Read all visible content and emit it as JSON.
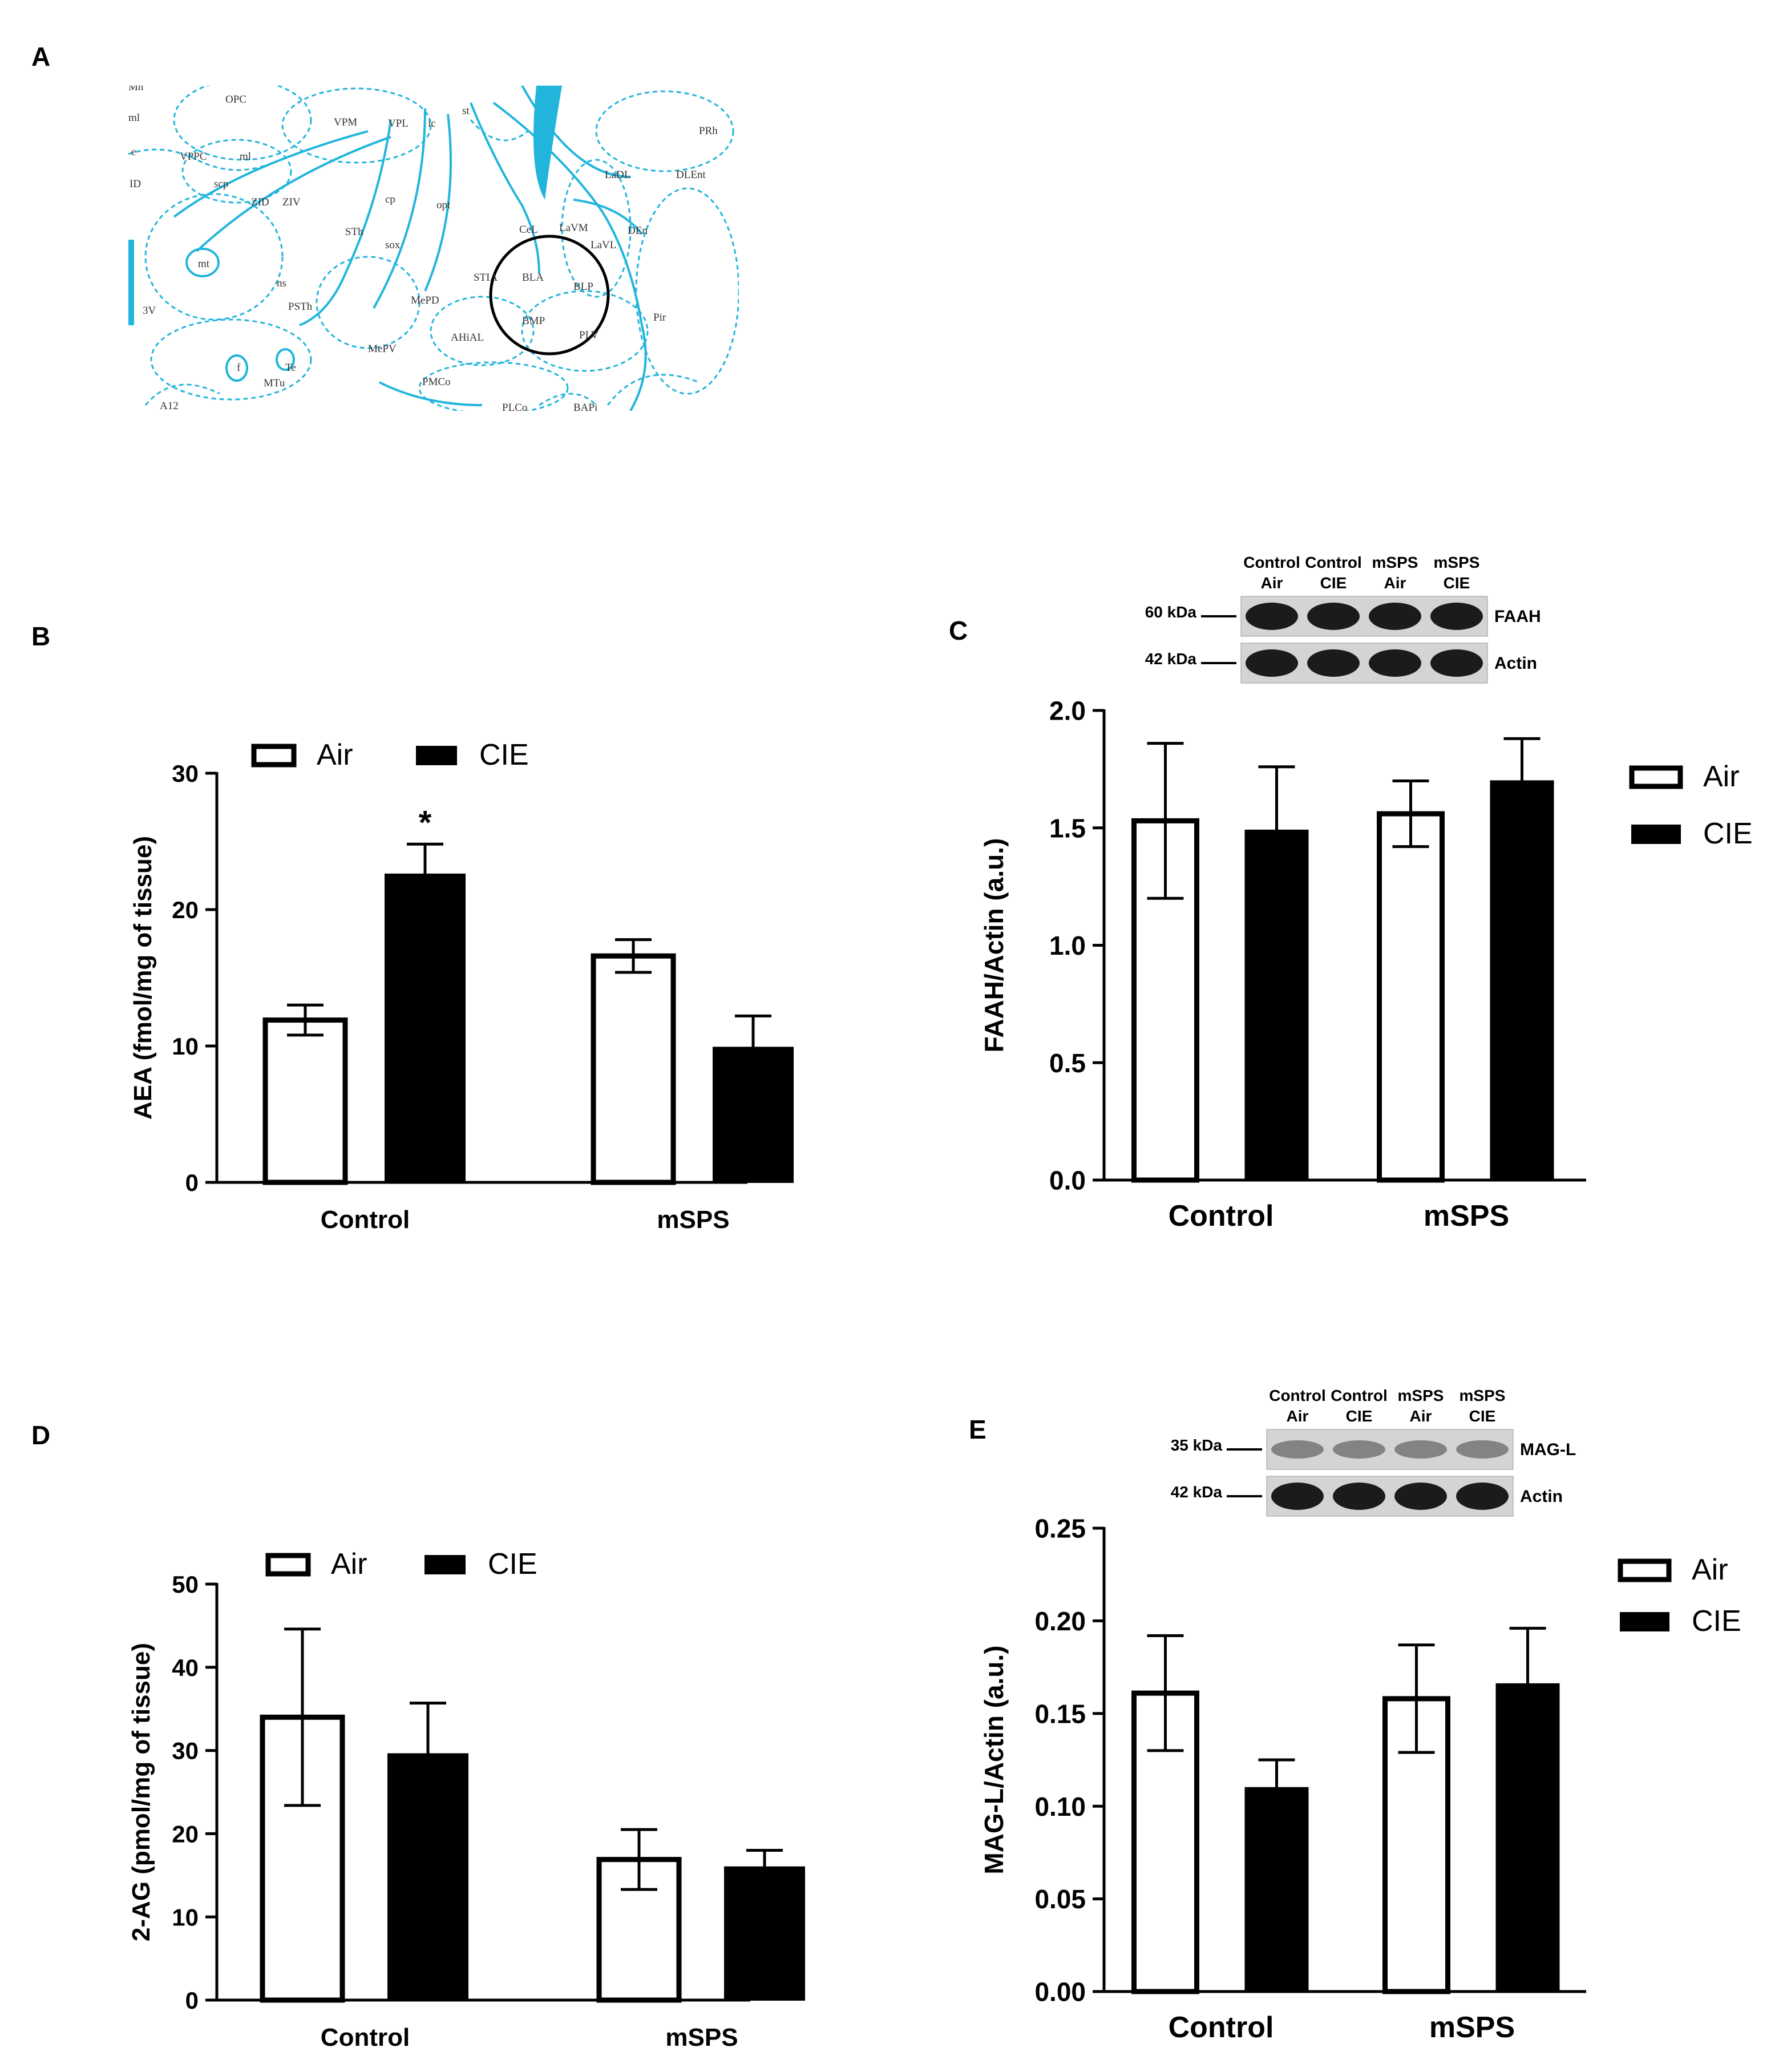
{
  "panels": {
    "A": {
      "letter": "A",
      "atlas_labels": [
        "Mn",
        "ml",
        "e",
        "ID",
        "OPC",
        "VPPC",
        "ml",
        "scp",
        "ZID",
        "ZIV",
        "VPM",
        "VPL",
        "ic",
        "st",
        "cp",
        "STh",
        "sox",
        "opt",
        "CeL",
        "LaVM",
        "LaVL",
        "LaDL",
        "DLEnt",
        "PRh",
        "DEn",
        "BLA",
        "BLP",
        "BMP",
        "PLV",
        "STIA",
        "MePD",
        "MePV",
        "AHiAL",
        "PMCo",
        "PLCo",
        "BAPi",
        "Pir",
        "mt",
        "ns",
        "PSTh",
        "3V",
        "f",
        "Te",
        "MTu",
        "A12"
      ]
    },
    "B": {
      "letter": "B"
    },
    "C": {
      "letter": "C",
      "blot": {
        "lanes": [
          [
            "Control",
            "Air"
          ],
          [
            "Control",
            "CIE"
          ],
          [
            "mSPS",
            "Air"
          ],
          [
            "mSPS",
            "CIE"
          ]
        ],
        "markers": [
          "60 kDa",
          "42 kDa"
        ],
        "bands": [
          "FAAH",
          "Actin"
        ]
      }
    },
    "D": {
      "letter": "D"
    },
    "E": {
      "letter": "E",
      "blot": {
        "lanes": [
          [
            "Control",
            "Air"
          ],
          [
            "Control",
            "CIE"
          ],
          [
            "mSPS",
            "Air"
          ],
          [
            "mSPS",
            "CIE"
          ]
        ],
        "markers": [
          "35 kDa",
          "42 kDa"
        ],
        "bands": [
          "MAG-L",
          "Actin"
        ]
      }
    }
  },
  "chart_data": [
    {
      "panel": "B",
      "type": "bar",
      "categories": [
        "Control",
        "mSPS"
      ],
      "series": [
        {
          "name": "Air",
          "values": [
            11.9,
            16.6
          ],
          "errors": [
            1.1,
            1.2
          ],
          "fill": "#ffffff"
        },
        {
          "name": "CIE",
          "values": [
            22.6,
            9.9
          ],
          "errors": [
            2.2,
            2.3
          ],
          "fill": "#000000"
        }
      ],
      "ylabel": "AEA (fmol/mg of tissue)",
      "ylim": [
        0,
        30
      ],
      "yticks": [
        "0",
        "10",
        "20",
        "30"
      ],
      "annotations": [
        {
          "category": "Control",
          "series": "CIE",
          "text": "*"
        }
      ],
      "legend_position": "top"
    },
    {
      "panel": "C",
      "type": "bar",
      "categories": [
        "Control",
        "mSPS"
      ],
      "series": [
        {
          "name": "Air",
          "values": [
            1.53,
            1.56
          ],
          "errors": [
            0.33,
            0.14
          ],
          "fill": "#ffffff"
        },
        {
          "name": "CIE",
          "values": [
            1.49,
            1.7
          ],
          "errors": [
            0.27,
            0.18
          ],
          "fill": "#000000"
        }
      ],
      "ylabel": "FAAH/Actin (a.u.)",
      "ylim": [
        0,
        2.0
      ],
      "yticks": [
        "0.0",
        "0.5",
        "1.0",
        "1.5",
        "2.0"
      ],
      "legend_position": "right"
    },
    {
      "panel": "D",
      "type": "bar",
      "categories": [
        "Control",
        "mSPS"
      ],
      "series": [
        {
          "name": "Air",
          "values": [
            34.0,
            16.9
          ],
          "errors": [
            10.6,
            3.6
          ],
          "fill": "#ffffff"
        },
        {
          "name": "CIE",
          "values": [
            29.6,
            16.0
          ],
          "errors": [
            6.1,
            2.0
          ],
          "fill": "#000000"
        }
      ],
      "ylabel": "2-AG (pmol/mg of tissue)",
      "ylim": [
        0,
        50
      ],
      "yticks": [
        "0",
        "10",
        "20",
        "30",
        "40",
        "50"
      ],
      "legend_position": "top"
    },
    {
      "panel": "E",
      "type": "bar",
      "categories": [
        "Control",
        "mSPS"
      ],
      "series": [
        {
          "name": "Air",
          "values": [
            0.161,
            0.158
          ],
          "errors": [
            0.031,
            0.029
          ],
          "fill": "#ffffff"
        },
        {
          "name": "CIE",
          "values": [
            0.11,
            0.166
          ],
          "errors": [
            0.015,
            0.03
          ],
          "fill": "#000000"
        }
      ],
      "ylabel": "MAG-L/Actin (a.u.)",
      "ylim": [
        0,
        0.25
      ],
      "yticks": [
        "0.00",
        "0.05",
        "0.10",
        "0.15",
        "0.20",
        "0.25"
      ],
      "legend_position": "right"
    }
  ]
}
